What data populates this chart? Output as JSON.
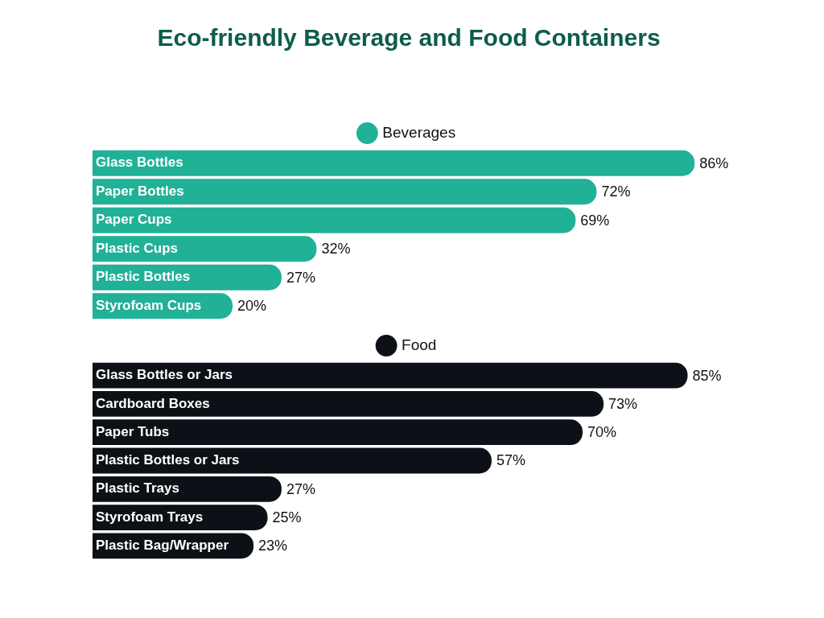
{
  "chart_data": [
    {
      "type": "bar",
      "title": "Eco-friendly Beverage and Food Containers",
      "orientation": "horizontal",
      "legend": "top",
      "tick_labels": false,
      "data_labels": true,
      "categories": [
        "Glass Bottles",
        "Paper Bottles",
        "Paper Cups",
        "Plastic Cups",
        "Plastic Bottles",
        "Styrofoam Cups"
      ],
      "series": [
        {
          "name": "Beverages",
          "color": "#21b197",
          "values": [
            86,
            72,
            69,
            32,
            27,
            20
          ],
          "value_labels": [
            "86%",
            "72%",
            "69%",
            "32%",
            "27%",
            "20%"
          ]
        }
      ]
    },
    {
      "type": "bar",
      "orientation": "horizontal",
      "legend": "top",
      "tick_labels": false,
      "data_labels": true,
      "categories": [
        "Glass Bottles or Jars",
        "Cardboard Boxes",
        "Paper Tubs",
        "Plastic Bottles or Jars",
        "Plastic Trays",
        "Styrofoam Trays",
        "Plastic Bag/Wrapper"
      ],
      "series": [
        {
          "name": "Food",
          "color": "#0d1117",
          "values": [
            85,
            73,
            70,
            57,
            27,
            25,
            23
          ],
          "value_labels": [
            "85%",
            "73%",
            "70%",
            "57%",
            "27%",
            "25%",
            "23%"
          ]
        }
      ]
    }
  ]
}
